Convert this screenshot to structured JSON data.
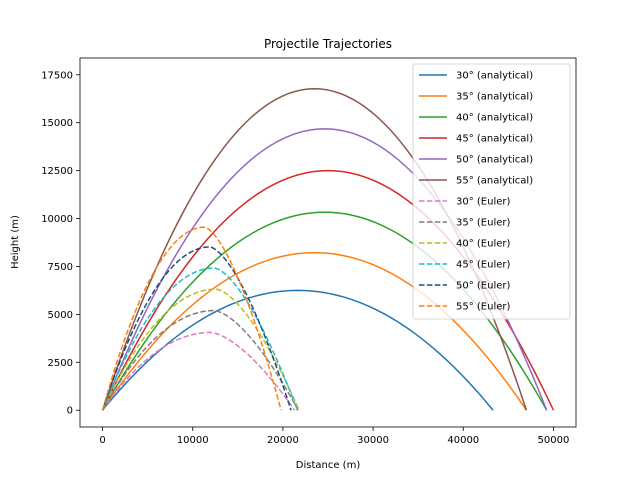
{
  "chart_data": {
    "type": "line",
    "title": "Projectile Trajectories",
    "xlabel": "Distance (m)",
    "ylabel": "Height (m)",
    "xlim": [
      -2500,
      52500
    ],
    "ylim": [
      -875,
      18375
    ],
    "xticks": [
      0,
      10000,
      20000,
      30000,
      40000,
      50000
    ],
    "xtick_labels": [
      "0",
      "10000",
      "20000",
      "30000",
      "40000",
      "50000"
    ],
    "yticks": [
      0,
      2500,
      5000,
      7500,
      10000,
      12500,
      15000,
      17500
    ],
    "ytick_labels": [
      "0",
      "2500",
      "5000",
      "7500",
      "10000",
      "12500",
      "15000",
      "17500"
    ],
    "grid": false,
    "legend_position": "top-right",
    "series": [
      {
        "name": "30° (analytical)",
        "color": "#1f77b4",
        "style": "solid",
        "range": 43300,
        "max_height": 6250
      },
      {
        "name": "35° (analytical)",
        "color": "#ff7f0e",
        "style": "solid",
        "range": 47000,
        "max_height": 8220
      },
      {
        "name": "40° (analytical)",
        "color": "#2ca02c",
        "style": "solid",
        "range": 49250,
        "max_height": 10330
      },
      {
        "name": "45° (analytical)",
        "color": "#d62728",
        "style": "solid",
        "range": 50000,
        "max_height": 12500
      },
      {
        "name": "50° (analytical)",
        "color": "#9467bd",
        "style": "solid",
        "range": 49250,
        "max_height": 14680
      },
      {
        "name": "55° (analytical)",
        "color": "#8c564b",
        "style": "solid",
        "range": 47000,
        "max_height": 16770
      },
      {
        "name": "30° (Euler)",
        "color": "#e377c2",
        "style": "dashed",
        "range": 21300,
        "max_height": 4060,
        "peak_x": 12000
      },
      {
        "name": "35° (Euler)",
        "color": "#7f7f7f",
        "style": "dashed",
        "range": 21700,
        "max_height": 5200,
        "peak_x": 12400
      },
      {
        "name": "40° (Euler)",
        "color": "#bcbd22",
        "style": "dashed",
        "range": 21800,
        "max_height": 6320,
        "peak_x": 12600
      },
      {
        "name": "45° (Euler)",
        "color": "#17becf",
        "style": "dashed",
        "range": 21600,
        "max_height": 7420,
        "peak_x": 12400
      },
      {
        "name": "50° (Euler)",
        "color": "#1f4e79",
        "style": "dashed",
        "range": 20900,
        "max_height": 8520,
        "peak_x": 11900
      },
      {
        "name": "55° (Euler)",
        "color": "#ff7f0e",
        "style": "dashed",
        "range": 19800,
        "max_height": 9550,
        "peak_x": 11300
      }
    ]
  }
}
